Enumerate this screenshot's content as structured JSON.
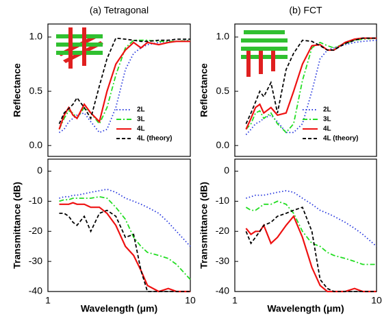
{
  "chart_data": [
    {
      "type": "line",
      "title": "(a) Tetragonal",
      "ylabel": "Reflectance",
      "log_x": true,
      "legend": "lower right",
      "x": [
        1.2,
        1.3,
        1.4,
        1.5,
        1.6,
        1.8,
        2.0,
        2.3,
        2.6,
        3.0,
        3.5,
        4.0,
        4.5,
        5.0,
        6.0,
        7.0,
        8.0,
        10.0
      ],
      "xlim": [
        1,
        10
      ],
      "xticks": [
        1,
        10
      ],
      "ylim": [
        -0.1,
        1.12
      ],
      "yticks": [
        {
          "value": 0,
          "label": "0.0"
        },
        0.5,
        {
          "value": 1,
          "label": "1.0"
        }
      ],
      "series": [
        {
          "name": "2L",
          "color": "#2233dd",
          "linestyle": "dotted",
          "values": [
            0.12,
            0.15,
            0.22,
            0.25,
            0.28,
            0.3,
            0.22,
            0.12,
            0.15,
            0.35,
            0.7,
            0.85,
            0.9,
            0.93,
            0.95,
            0.96,
            0.96,
            0.97
          ]
        },
        {
          "name": "3L",
          "color": "#22dd22",
          "linestyle": "dashdot",
          "values": [
            0.15,
            0.25,
            0.32,
            0.3,
            0.25,
            0.35,
            0.3,
            0.2,
            0.35,
            0.65,
            0.9,
            0.97,
            0.97,
            0.97,
            0.96,
            0.96,
            0.96,
            0.97
          ]
        },
        {
          "name": "4L",
          "color": "#ee1111",
          "linestyle": "solid",
          "values": [
            0.15,
            0.28,
            0.35,
            0.28,
            0.25,
            0.38,
            0.3,
            0.22,
            0.5,
            0.75,
            0.88,
            0.95,
            0.9,
            0.95,
            0.93,
            0.95,
            0.96,
            0.96
          ]
        },
        {
          "name": "4L (theory)",
          "color": "#000000",
          "linestyle": "dashed",
          "values": [
            0.2,
            0.3,
            0.34,
            0.38,
            0.44,
            0.35,
            0.25,
            0.55,
            0.8,
            0.99,
            0.98,
            0.97,
            0.96,
            0.96,
            0.97,
            0.97,
            0.98,
            0.98
          ]
        }
      ]
    },
    {
      "type": "line",
      "ylabel": "Transmittance (dB)",
      "xlabel": "Wavelength (μm)",
      "log_x": true,
      "x": [
        1.2,
        1.3,
        1.4,
        1.5,
        1.6,
        1.8,
        2.0,
        2.3,
        2.6,
        3.0,
        3.5,
        4.0,
        4.5,
        5.0,
        6.0,
        7.0,
        8.0,
        10.0
      ],
      "xlim": [
        1,
        10
      ],
      "xticks": [
        1,
        10
      ],
      "ylim": [
        -40,
        4
      ],
      "yticks": [
        0,
        -10,
        -20,
        -30,
        -40
      ],
      "series": [
        {
          "name": "2L",
          "color": "#2233dd",
          "linestyle": "dotted",
          "values": [
            -9,
            -8.5,
            -8.5,
            -8,
            -8,
            -7.5,
            -7,
            -6.5,
            -6,
            -7,
            -9,
            -10,
            -11,
            -12,
            -14,
            -17,
            -20,
            -25
          ]
        },
        {
          "name": "3L",
          "color": "#22dd22",
          "linestyle": "dashdot",
          "values": [
            -10,
            -9.5,
            -9.5,
            -9,
            -9,
            -9,
            -9,
            -8.5,
            -9,
            -12,
            -16,
            -22,
            -25,
            -27,
            -28,
            -29,
            -31,
            -36
          ]
        },
        {
          "name": "4L",
          "color": "#ee1111",
          "linestyle": "solid",
          "values": [
            -11,
            -11,
            -11,
            -10.5,
            -11,
            -11,
            -12,
            -12,
            -14,
            -18,
            -25,
            -28,
            -33,
            -38,
            -40,
            -39,
            -40,
            -40
          ]
        },
        {
          "name": "4L (theory)",
          "color": "#000000",
          "linestyle": "dashed",
          "values": [
            -14,
            -14,
            -15,
            -17,
            -18,
            -15,
            -20,
            -14,
            -13,
            -15,
            -22,
            -21,
            -33,
            -40,
            -40,
            -40,
            -40,
            -40
          ]
        }
      ]
    },
    {
      "type": "line",
      "title": "(b) FCT",
      "ylabel": "Reflectance",
      "log_x": true,
      "legend": "lower right",
      "x": [
        1.2,
        1.3,
        1.4,
        1.5,
        1.6,
        1.8,
        2.0,
        2.3,
        2.6,
        3.0,
        3.5,
        4.0,
        4.5,
        5.0,
        6.0,
        7.0,
        8.0,
        10.0
      ],
      "xlim": [
        1,
        10
      ],
      "xticks": [
        1,
        10
      ],
      "ylim": [
        -0.1,
        1.12
      ],
      "yticks": [
        {
          "value": 0,
          "label": "0.0"
        },
        0.5,
        {
          "value": 1,
          "label": "1.0"
        }
      ],
      "series": [
        {
          "name": "2L",
          "color": "#2233dd",
          "linestyle": "dotted",
          "values": [
            0.1,
            0.15,
            0.2,
            0.22,
            0.25,
            0.28,
            0.22,
            0.12,
            0.12,
            0.2,
            0.5,
            0.8,
            0.88,
            0.9,
            0.93,
            0.95,
            0.96,
            0.97
          ]
        },
        {
          "name": "3L",
          "color": "#22dd22",
          "linestyle": "dashdot",
          "values": [
            0.15,
            0.2,
            0.3,
            0.32,
            0.25,
            0.3,
            0.2,
            0.12,
            0.2,
            0.6,
            0.9,
            0.95,
            0.92,
            0.9,
            0.94,
            0.97,
            0.98,
            0.99
          ]
        },
        {
          "name": "4L",
          "color": "#ee1111",
          "linestyle": "solid",
          "values": [
            0.15,
            0.25,
            0.35,
            0.38,
            0.3,
            0.35,
            0.28,
            0.3,
            0.5,
            0.75,
            0.92,
            0.93,
            0.88,
            0.88,
            0.95,
            0.98,
            0.99,
            0.99
          ]
        },
        {
          "name": "4L (theory)",
          "color": "#000000",
          "linestyle": "dashed",
          "values": [
            0.2,
            0.3,
            0.4,
            0.5,
            0.45,
            0.58,
            0.3,
            0.7,
            0.85,
            0.97,
            0.96,
            0.92,
            0.88,
            0.88,
            0.94,
            0.97,
            0.99,
            0.99
          ]
        }
      ]
    },
    {
      "type": "line",
      "ylabel": "Transmittance (dB)",
      "xlabel": "Wavelength (μm)",
      "log_x": true,
      "x": [
        1.2,
        1.3,
        1.4,
        1.5,
        1.6,
        1.8,
        2.0,
        2.3,
        2.6,
        3.0,
        3.5,
        4.0,
        4.5,
        5.0,
        6.0,
        7.0,
        8.0,
        10.0
      ],
      "xlim": [
        1,
        10
      ],
      "xticks": [
        1,
        10
      ],
      "ylim": [
        -40,
        4
      ],
      "yticks": [
        0,
        -10,
        -20,
        -30,
        -40
      ],
      "series": [
        {
          "name": "2L",
          "color": "#2233dd",
          "linestyle": "dotted",
          "values": [
            -9,
            -8.5,
            -8,
            -8,
            -8,
            -7.5,
            -7,
            -6.5,
            -7,
            -9,
            -11,
            -13,
            -14,
            -15,
            -17,
            -19,
            -21,
            -25
          ]
        },
        {
          "name": "3L",
          "color": "#22dd22",
          "linestyle": "dashdot",
          "values": [
            -12,
            -13,
            -13,
            -12,
            -11,
            -11,
            -10,
            -11,
            -14,
            -20,
            -24,
            -25,
            -27,
            -28,
            -29,
            -30,
            -31,
            -31
          ]
        },
        {
          "name": "4L",
          "color": "#ee1111",
          "linestyle": "solid",
          "values": [
            -19,
            -21,
            -20,
            -20,
            -18,
            -24,
            -22,
            -18,
            -15,
            -22,
            -32,
            -38,
            -40,
            -40,
            -40,
            -39,
            -40,
            -40
          ]
        },
        {
          "name": "4L (theory)",
          "color": "#000000",
          "linestyle": "dashed",
          "values": [
            -20,
            -24,
            -22,
            -20,
            -18,
            -17,
            -15,
            -14,
            -13,
            -12,
            -20,
            -36,
            -39,
            -40,
            -40,
            -40,
            -40,
            -40
          ]
        }
      ]
    }
  ]
}
